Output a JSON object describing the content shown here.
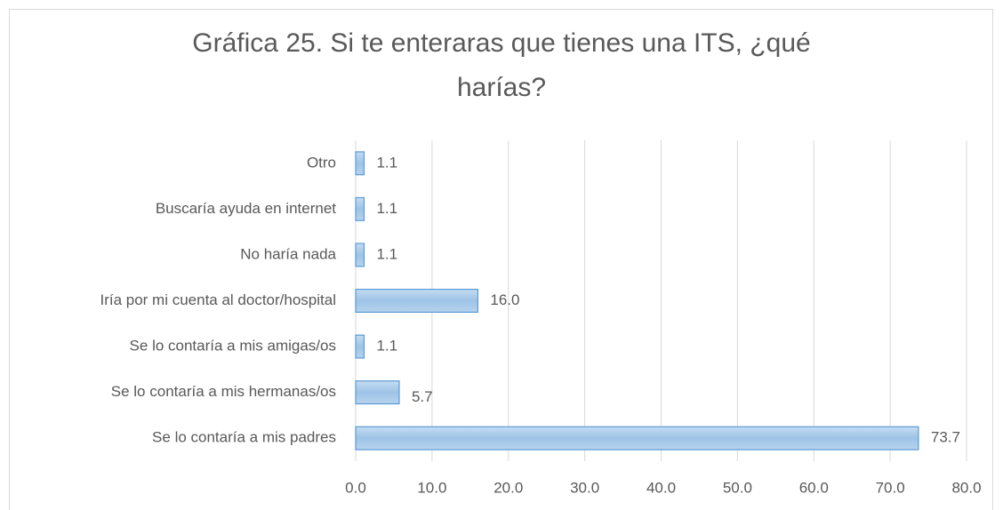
{
  "chart_data": {
    "type": "bar",
    "orientation": "horizontal",
    "title": "Gráfica 25. Si te enteraras que tienes una ITS, ¿qué harías?",
    "categories": [
      "Otro",
      "Buscaría ayuda en internet",
      "No haría nada",
      "Iría por mi cuenta al doctor/hospital",
      "Se lo contaría a mis amigas/os",
      "Se lo contaría a mis hermanas/os",
      "Se lo contaría a mis padres"
    ],
    "values": [
      1.1,
      1.1,
      1.1,
      16.0,
      1.1,
      5.7,
      73.7
    ],
    "value_labels": [
      "1.1",
      "1.1",
      "1.1",
      "16.0",
      "1.1",
      "5.7",
      "73.7"
    ],
    "color": "#9dc3e6",
    "xlim": [
      0,
      80
    ],
    "xticks": [
      {
        "value": 0,
        "label": "0.0"
      },
      {
        "value": 10,
        "label": "10.0"
      },
      {
        "value": 20,
        "label": "20.0"
      },
      {
        "value": 30,
        "label": "30.0"
      },
      {
        "value": 40,
        "label": "40.0"
      },
      {
        "value": 50,
        "label": "50.0"
      },
      {
        "value": 60,
        "label": "60.0"
      },
      {
        "value": 70,
        "label": "70.0"
      },
      {
        "value": 80,
        "label": "80.0"
      }
    ],
    "grid": true
  }
}
